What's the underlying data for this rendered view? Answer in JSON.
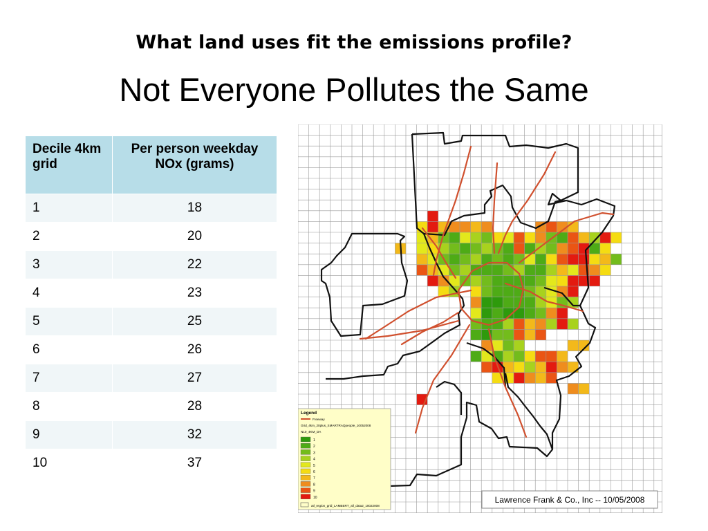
{
  "slide": {
    "heading": "What land uses fit the emissions profile?",
    "title": "Not Everyone Pollutes the Same"
  },
  "table": {
    "headers": [
      "Decile 4km grid",
      "Per person weekday NOx (grams)"
    ],
    "rows": [
      {
        "decile": "1",
        "nox": "18"
      },
      {
        "decile": "2",
        "nox": "20"
      },
      {
        "decile": "3",
        "nox": "22"
      },
      {
        "decile": "4",
        "nox": "23"
      },
      {
        "decile": "5",
        "nox": "25"
      },
      {
        "decile": "6",
        "nox": "26"
      },
      {
        "decile": "7",
        "nox": "27"
      },
      {
        "decile": "8",
        "nox": "28"
      },
      {
        "decile": "9",
        "nox": "32"
      },
      {
        "decile": "10",
        "nox": "37"
      }
    ]
  },
  "map": {
    "legend": {
      "title": "Legend",
      "freeway_label": "Freeway",
      "grid_label": "Grid_4km_20plus_SMARTRAQpeople_10052008",
      "field_label": "N10_4KM_DA",
      "classes": [
        "1",
        "2",
        "3",
        "4",
        "5",
        "6",
        "7",
        "8",
        "9",
        "10"
      ],
      "region_label": "atl_region_grid_LAMBERT_all_data2_10022008"
    },
    "class_colors": [
      "#2e9a0c",
      "#4eab16",
      "#73bc1c",
      "#a8d21e",
      "#e3e81c",
      "#f5dc12",
      "#f3b91a",
      "#ef8d1e",
      "#ea5514",
      "#e31a10"
    ],
    "credit": "Lawrence Frank & Co., Inc -- 10/05/2008"
  }
}
